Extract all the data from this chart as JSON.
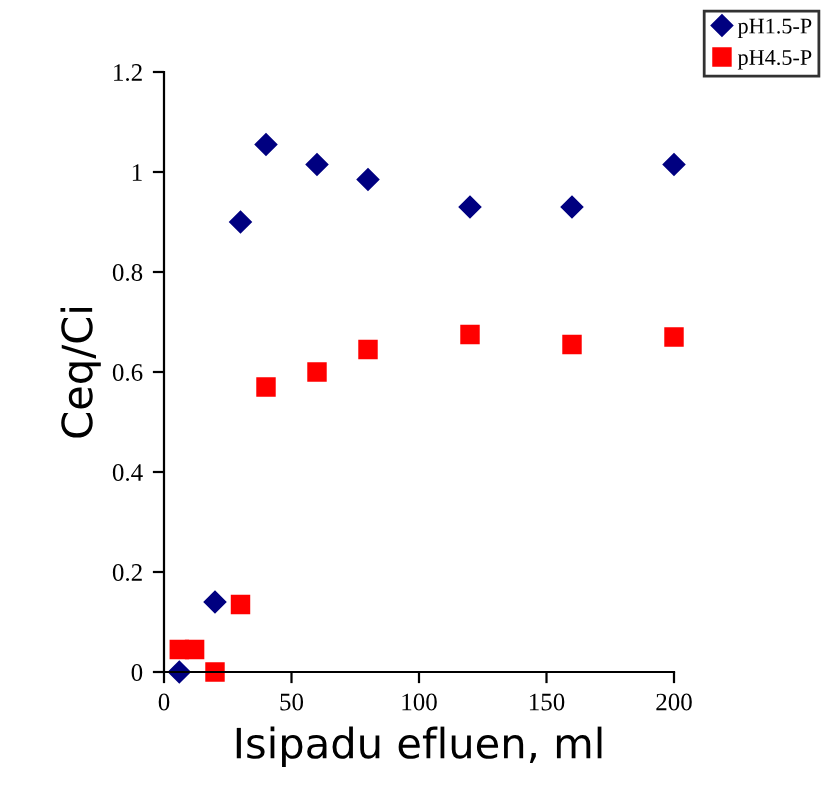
{
  "chart_data": {
    "type": "scatter",
    "xlabel": "Isipadu efluen, ml",
    "ylabel": "Ceq/Ci",
    "series": [
      {
        "name": "pH1.5-P",
        "color": "#000080",
        "marker": "diamond",
        "x": [
          6,
          20,
          30,
          40,
          60,
          80,
          120,
          160,
          200
        ],
        "values": [
          0,
          0.14,
          0.9,
          1.055,
          1.015,
          0.985,
          0.93,
          0.93,
          1.015
        ]
      },
      {
        "name": "pH4.5-P",
        "color": "#ff0000",
        "marker": "square",
        "x": [
          6,
          12,
          20,
          30,
          40,
          60,
          80,
          120,
          160,
          200
        ],
        "values": [
          0.045,
          0.045,
          0,
          0.135,
          0.57,
          0.6,
          0.645,
          0.675,
          0.655,
          0.67
        ]
      }
    ],
    "xlim": [
      0,
      200
    ],
    "xticks": [
      0,
      50,
      100,
      150,
      200
    ],
    "ylim": [
      0,
      1.2
    ],
    "yticks": [
      0,
      0.2,
      0.4,
      0.6,
      0.8,
      1,
      1.2
    ],
    "grid": false,
    "legend": "top right"
  }
}
